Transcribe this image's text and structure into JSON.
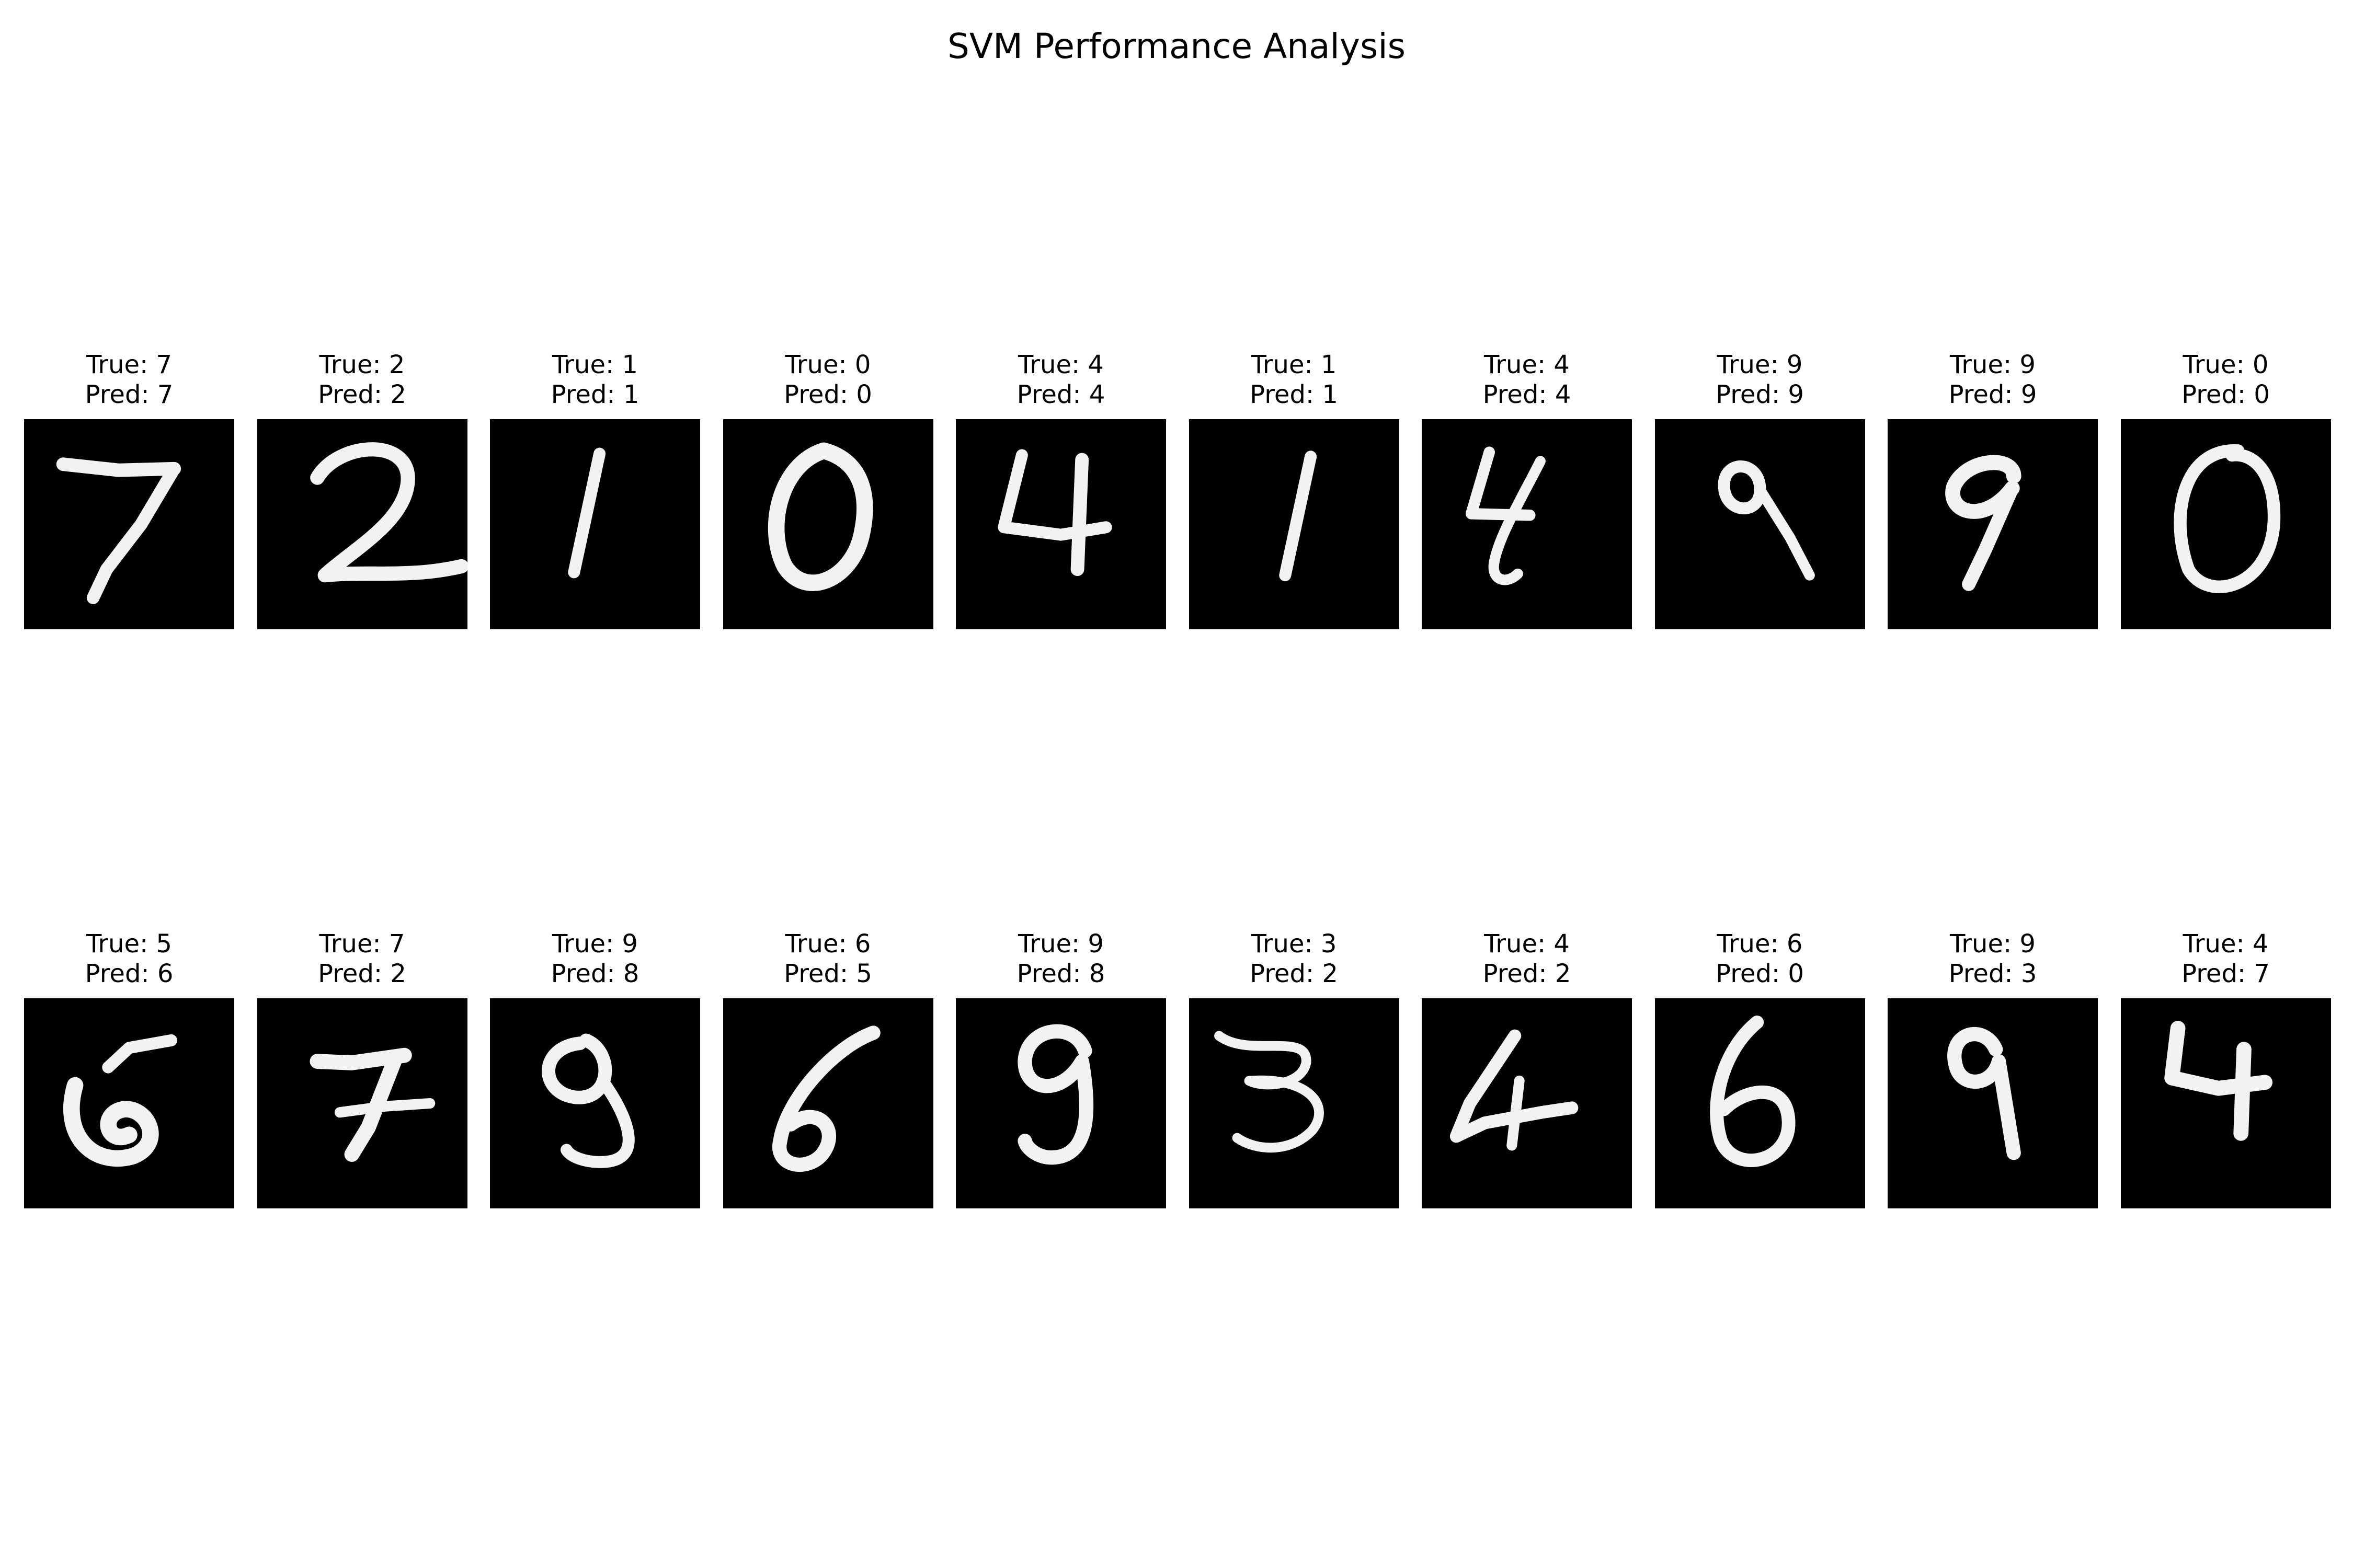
{
  "figure": {
    "title": "SVM Performance Analysis",
    "image_colormap": "gray",
    "rows": [
      [
        {
          "true_text": "True: 7",
          "pred_text": "Pred: 7",
          "true_label": 7,
          "pred_label": 7
        },
        {
          "true_text": "True: 2",
          "pred_text": "Pred: 2",
          "true_label": 2,
          "pred_label": 2
        },
        {
          "true_text": "True: 1",
          "pred_text": "Pred: 1",
          "true_label": 1,
          "pred_label": 1
        },
        {
          "true_text": "True: 0",
          "pred_text": "Pred: 0",
          "true_label": 0,
          "pred_label": 0
        },
        {
          "true_text": "True: 4",
          "pred_text": "Pred: 4",
          "true_label": 4,
          "pred_label": 4
        },
        {
          "true_text": "True: 1",
          "pred_text": "Pred: 1",
          "true_label": 1,
          "pred_label": 1
        },
        {
          "true_text": "True: 4",
          "pred_text": "Pred: 4",
          "true_label": 4,
          "pred_label": 4
        },
        {
          "true_text": "True: 9",
          "pred_text": "Pred: 9",
          "true_label": 9,
          "pred_label": 9
        },
        {
          "true_text": "True: 9",
          "pred_text": "Pred: 9",
          "true_label": 9,
          "pred_label": 9
        },
        {
          "true_text": "True: 0",
          "pred_text": "Pred: 0",
          "true_label": 0,
          "pred_label": 0
        }
      ],
      [
        {
          "true_text": "True: 5",
          "pred_text": "Pred: 6",
          "true_label": 5,
          "pred_label": 6
        },
        {
          "true_text": "True: 7",
          "pred_text": "Pred: 2",
          "true_label": 7,
          "pred_label": 2
        },
        {
          "true_text": "True: 9",
          "pred_text": "Pred: 8",
          "true_label": 9,
          "pred_label": 8
        },
        {
          "true_text": "True: 6",
          "pred_text": "Pred: 5",
          "true_label": 6,
          "pred_label": 5
        },
        {
          "true_text": "True: 9",
          "pred_text": "Pred: 8",
          "true_label": 9,
          "pred_label": 8
        },
        {
          "true_text": "True: 3",
          "pred_text": "Pred: 2",
          "true_label": 3,
          "pred_label": 2
        },
        {
          "true_text": "True: 4",
          "pred_text": "Pred: 2",
          "true_label": 4,
          "pred_label": 2
        },
        {
          "true_text": "True: 6",
          "pred_text": "Pred: 0",
          "true_label": 6,
          "pred_label": 0
        },
        {
          "true_text": "True: 9",
          "pred_text": "Pred: 3",
          "true_label": 9,
          "pred_label": 3
        },
        {
          "true_text": "True: 4",
          "pred_text": "Pred: 7",
          "true_label": 4,
          "pred_label": 7
        }
      ]
    ]
  }
}
